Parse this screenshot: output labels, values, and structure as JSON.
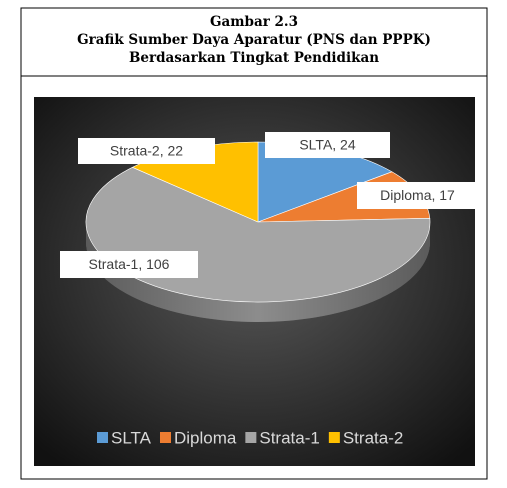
{
  "chart_data": {
    "type": "pie3d",
    "caption": "Gambar 2.3",
    "title": "Grafik Sumber Daya Aparatur (PNS dan PPPK)",
    "subtitle": "Berdasarkan Tingkat Pendidikan",
    "categories": [
      "SLTA",
      "Diploma",
      "Strata-1",
      "Strata-2"
    ],
    "values": [
      24,
      17,
      106,
      22
    ],
    "value_labels": [
      "SLTA, 24",
      "Diploma, 17",
      "Strata-1, 106",
      "Strata-2, 22"
    ],
    "colors": [
      "#5b9bd5",
      "#ed7d31",
      "#a5a5a5",
      "#ffc000"
    ],
    "legend": "bottom"
  }
}
